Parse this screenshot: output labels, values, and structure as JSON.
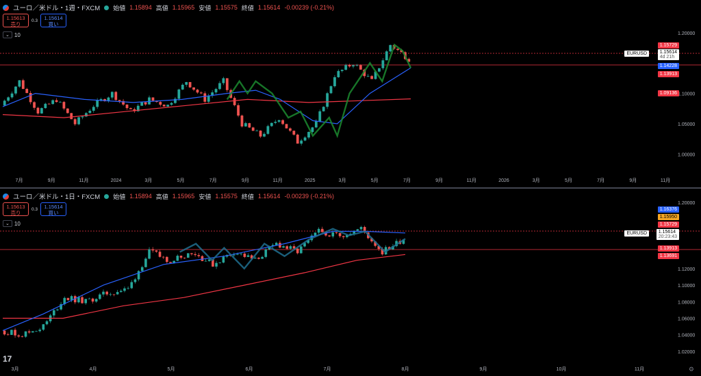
{
  "colors": {
    "up": "#26a69a",
    "down": "#ef5350",
    "ma_fast": "#2962ff",
    "ma_slow": "#f23645",
    "zigzag_top": "#1b8a2f",
    "zigzag_bot": "#1e6f8f",
    "sell": "#ef5350",
    "buy": "#2962ff",
    "orange": "#f5a623"
  },
  "panes": [
    {
      "id": "top",
      "symbol": "ユーロ／米ドル・1週・FXCM",
      "ohlc": {
        "o_label": "始値",
        "o": "1.15894",
        "h_label": "高値",
        "h": "1.15965",
        "l_label": "安値",
        "l": "1.15575",
        "c_label": "終値",
        "c": "1.15614",
        "chg": "-0.00239 (-0.21%)"
      },
      "sell": {
        "price": "1.15613",
        "label": "売り"
      },
      "buy": {
        "price": "1.15614",
        "label": "買い"
      },
      "spread": "0.3",
      "indicator": "10",
      "symtag": "EURUSD",
      "tags": [
        {
          "text": "1.15729",
          "bg": "#f23645"
        },
        {
          "text": "1.15614",
          "bg": "#ffffff",
          "fg": "#000000",
          "sub": "4d 21h"
        },
        {
          "text": "1.14228",
          "bg": "#2962ff"
        },
        {
          "text": "1.13913",
          "bg": "#f23645"
        },
        {
          "text": "1.09136",
          "bg": "#f23645"
        }
      ],
      "y_ticks": [
        "1.20000",
        "1.10000",
        "1.05000",
        "1.00000"
      ],
      "x_ticks": [
        "7月",
        "9月",
        "11月",
        "2024",
        "3月",
        "5月",
        "7月",
        "9月",
        "11月",
        "2025",
        "3月",
        "5月",
        "7月",
        "9月",
        "11月",
        "2026",
        "3月",
        "5月",
        "7月",
        "9月",
        "11月"
      ]
    },
    {
      "id": "bot",
      "symbol": "ユーロ／米ドル・1日・FXCM",
      "ohlc": {
        "o_label": "始値",
        "o": "1.15894",
        "h_label": "高値",
        "h": "1.15965",
        "l_label": "安値",
        "l": "1.15575",
        "c_label": "終値",
        "c": "1.15614",
        "chg": "-0.00239 (-0.21%)"
      },
      "sell": {
        "price": "1.15613",
        "label": "売り"
      },
      "buy": {
        "price": "1.15614",
        "label": "買い"
      },
      "spread": "0.3",
      "indicator": "10",
      "symtag": "EURUSD",
      "tags": [
        {
          "text": "1.16376",
          "bg": "#2962ff"
        },
        {
          "text": "1.15950",
          "bg": "#f5a623",
          "fg": "#000000"
        },
        {
          "text": "1.15729",
          "bg": "#f23645"
        },
        {
          "text": "1.15614",
          "bg": "#ffffff",
          "fg": "#000000",
          "sub": "20:23:43"
        },
        {
          "text": "1.13913",
          "bg": "#f23645"
        },
        {
          "text": "1.13691",
          "bg": "#f23645"
        }
      ],
      "y_ticks": [
        "1.20000",
        "1.12000",
        "1.10000",
        "1.08000",
        "1.06000",
        "1.04000",
        "1.02000"
      ],
      "x_ticks": [
        "3月",
        "4月",
        "5月",
        "6月",
        "7月",
        "8月",
        "9月",
        "10月",
        "11月"
      ]
    }
  ],
  "chart_data": [
    {
      "type": "candlestick",
      "title": "ユーロ／米ドル・1週・FXCM",
      "ylim": [
        0.97,
        1.22
      ],
      "levels": [
        1.15729,
        1.13913
      ],
      "segments": [
        {
          "from": 1.08,
          "to": 1.12
        },
        {
          "from": 1.12,
          "to": 1.07
        },
        {
          "from": 1.07,
          "to": 1.09
        },
        {
          "from": 1.09,
          "to": 1.05
        },
        {
          "from": 1.05,
          "to": 1.08
        },
        {
          "from": 1.08,
          "to": 1.1
        },
        {
          "from": 1.1,
          "to": 1.07
        },
        {
          "from": 1.07,
          "to": 1.09
        },
        {
          "from": 1.09,
          "to": 1.08
        },
        {
          "from": 1.08,
          "to": 1.12
        },
        {
          "from": 1.12,
          "to": 1.09
        },
        {
          "from": 1.09,
          "to": 1.12
        },
        {
          "from": 1.12,
          "to": 1.05
        },
        {
          "from": 1.05,
          "to": 1.03
        },
        {
          "from": 1.03,
          "to": 1.06
        },
        {
          "from": 1.06,
          "to": 1.02
        },
        {
          "from": 1.02,
          "to": 1.05
        },
        {
          "from": 1.05,
          "to": 1.13
        },
        {
          "from": 1.13,
          "to": 1.15
        },
        {
          "from": 1.15,
          "to": 1.12
        },
        {
          "from": 1.12,
          "to": 1.18
        },
        {
          "from": 1.18,
          "to": 1.157
        }
      ],
      "ma_fast": [
        [
          0,
          1.078
        ],
        [
          0.08,
          1.1
        ],
        [
          0.2,
          1.09
        ],
        [
          0.32,
          1.085
        ],
        [
          0.44,
          1.09
        ],
        [
          0.55,
          1.1
        ],
        [
          0.62,
          1.105
        ],
        [
          0.68,
          1.09
        ],
        [
          0.76,
          1.055
        ],
        [
          0.82,
          1.05
        ],
        [
          0.9,
          1.1
        ],
        [
          1.0,
          1.142
        ]
      ],
      "ma_slow": [
        [
          0,
          1.065
        ],
        [
          0.15,
          1.06
        ],
        [
          0.3,
          1.07
        ],
        [
          0.45,
          1.08
        ],
        [
          0.6,
          1.09
        ],
        [
          0.75,
          1.085
        ],
        [
          0.88,
          1.088
        ],
        [
          1.0,
          1.091
        ]
      ],
      "zigzag": [
        [
          0.55,
          1.09
        ],
        [
          0.58,
          1.12
        ],
        [
          0.6,
          1.1
        ],
        [
          0.62,
          1.12
        ],
        [
          0.66,
          1.1
        ],
        [
          0.7,
          1.06
        ],
        [
          0.73,
          1.07
        ],
        [
          0.76,
          1.03
        ],
        [
          0.8,
          1.06
        ],
        [
          0.82,
          1.03
        ],
        [
          0.85,
          1.1
        ],
        [
          0.9,
          1.15
        ],
        [
          0.93,
          1.12
        ],
        [
          0.96,
          1.18
        ],
        [
          0.98,
          1.17
        ],
        [
          1.0,
          1.142
        ]
      ]
    },
    {
      "type": "candlestick",
      "title": "ユーロ／米ドル・1日・FXCM",
      "ylim": [
        1.01,
        1.2
      ],
      "levels": [
        1.15729,
        1.13913
      ],
      "segments": [
        {
          "from": 1.045,
          "to": 1.04
        },
        {
          "from": 1.04,
          "to": 1.05
        },
        {
          "from": 1.05,
          "to": 1.085
        },
        {
          "from": 1.085,
          "to": 1.08
        },
        {
          "from": 1.08,
          "to": 1.09
        },
        {
          "from": 1.09,
          "to": 1.095
        },
        {
          "from": 1.095,
          "to": 1.14
        },
        {
          "from": 1.14,
          "to": 1.13
        },
        {
          "from": 1.13,
          "to": 1.14
        },
        {
          "from": 1.14,
          "to": 1.125
        },
        {
          "from": 1.125,
          "to": 1.14
        },
        {
          "from": 1.14,
          "to": 1.13
        },
        {
          "from": 1.13,
          "to": 1.15
        },
        {
          "from": 1.15,
          "to": 1.14
        },
        {
          "from": 1.14,
          "to": 1.165
        },
        {
          "from": 1.165,
          "to": 1.16
        },
        {
          "from": 1.16,
          "to": 1.168
        },
        {
          "from": 1.168,
          "to": 1.14
        },
        {
          "from": 1.14,
          "to": 1.156
        }
      ],
      "ma_fast": [
        [
          0,
          1.045
        ],
        [
          0.1,
          1.065
        ],
        [
          0.25,
          1.1
        ],
        [
          0.4,
          1.125
        ],
        [
          0.55,
          1.135
        ],
        [
          0.7,
          1.15
        ],
        [
          0.82,
          1.165
        ],
        [
          0.9,
          1.165
        ],
        [
          1.0,
          1.163
        ]
      ],
      "ma_slow": [
        [
          0,
          1.06
        ],
        [
          0.15,
          1.06
        ],
        [
          0.3,
          1.075
        ],
        [
          0.45,
          1.085
        ],
        [
          0.6,
          1.1
        ],
        [
          0.75,
          1.115
        ],
        [
          0.88,
          1.13
        ],
        [
          1.0,
          1.137
        ]
      ],
      "zigzag": [
        [
          0.44,
          1.14
        ],
        [
          0.48,
          1.15
        ],
        [
          0.52,
          1.13
        ],
        [
          0.55,
          1.145
        ],
        [
          0.6,
          1.12
        ],
        [
          0.65,
          1.15
        ],
        [
          0.7,
          1.135
        ],
        [
          0.76,
          1.155
        ],
        [
          0.82,
          1.168
        ],
        [
          0.86,
          1.16
        ],
        [
          0.9,
          1.165
        ],
        [
          0.95,
          1.14
        ],
        [
          1.0,
          1.156
        ]
      ]
    }
  ]
}
